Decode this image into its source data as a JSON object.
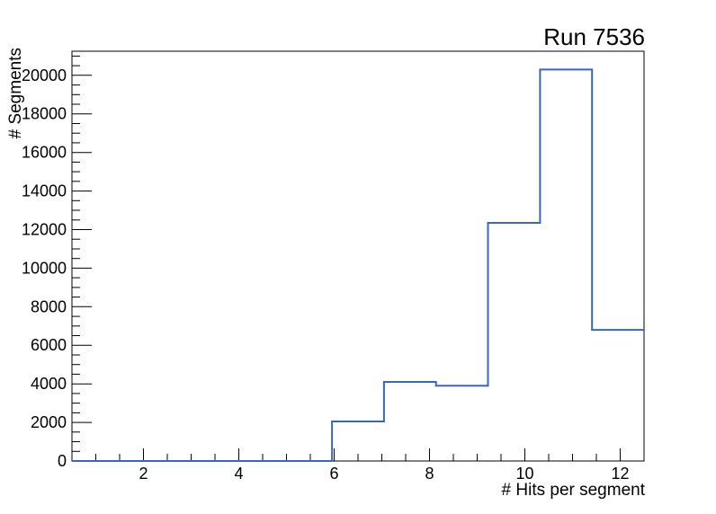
{
  "chart_data": {
    "type": "histogram-step",
    "title": "Run 7536",
    "xlabel": "# Hits per segment",
    "ylabel": "# Segments",
    "xlim": [
      0.5,
      12.5
    ],
    "ylim": [
      0,
      21250
    ],
    "n_bins": 11,
    "bin_edges": [
      0.5,
      1.5909,
      2.6818,
      3.7727,
      4.8636,
      5.9545,
      7.0455,
      8.1364,
      9.2273,
      10.3182,
      11.4091,
      12.5
    ],
    "counts": [
      0,
      0,
      0,
      0,
      0,
      2050,
      4100,
      3900,
      12350,
      20300,
      6800
    ],
    "x_major_ticks": [
      2,
      4,
      6,
      8,
      10,
      12
    ],
    "x_tick_labels": [
      "2",
      "4",
      "6",
      "8",
      "10",
      "12"
    ],
    "x_minor_step": 0.5,
    "y_major_step": 2000,
    "y_minor_step": 500,
    "y_tick_labels": [
      "0",
      "2000",
      "4000",
      "6000",
      "8000",
      "10000",
      "12000",
      "14000",
      "16000",
      "18000",
      "20000"
    ],
    "grid": false,
    "legend_position": "none",
    "line_color": "#3a67b5",
    "frame_color": "#000000",
    "background_color": "#ffffff"
  }
}
